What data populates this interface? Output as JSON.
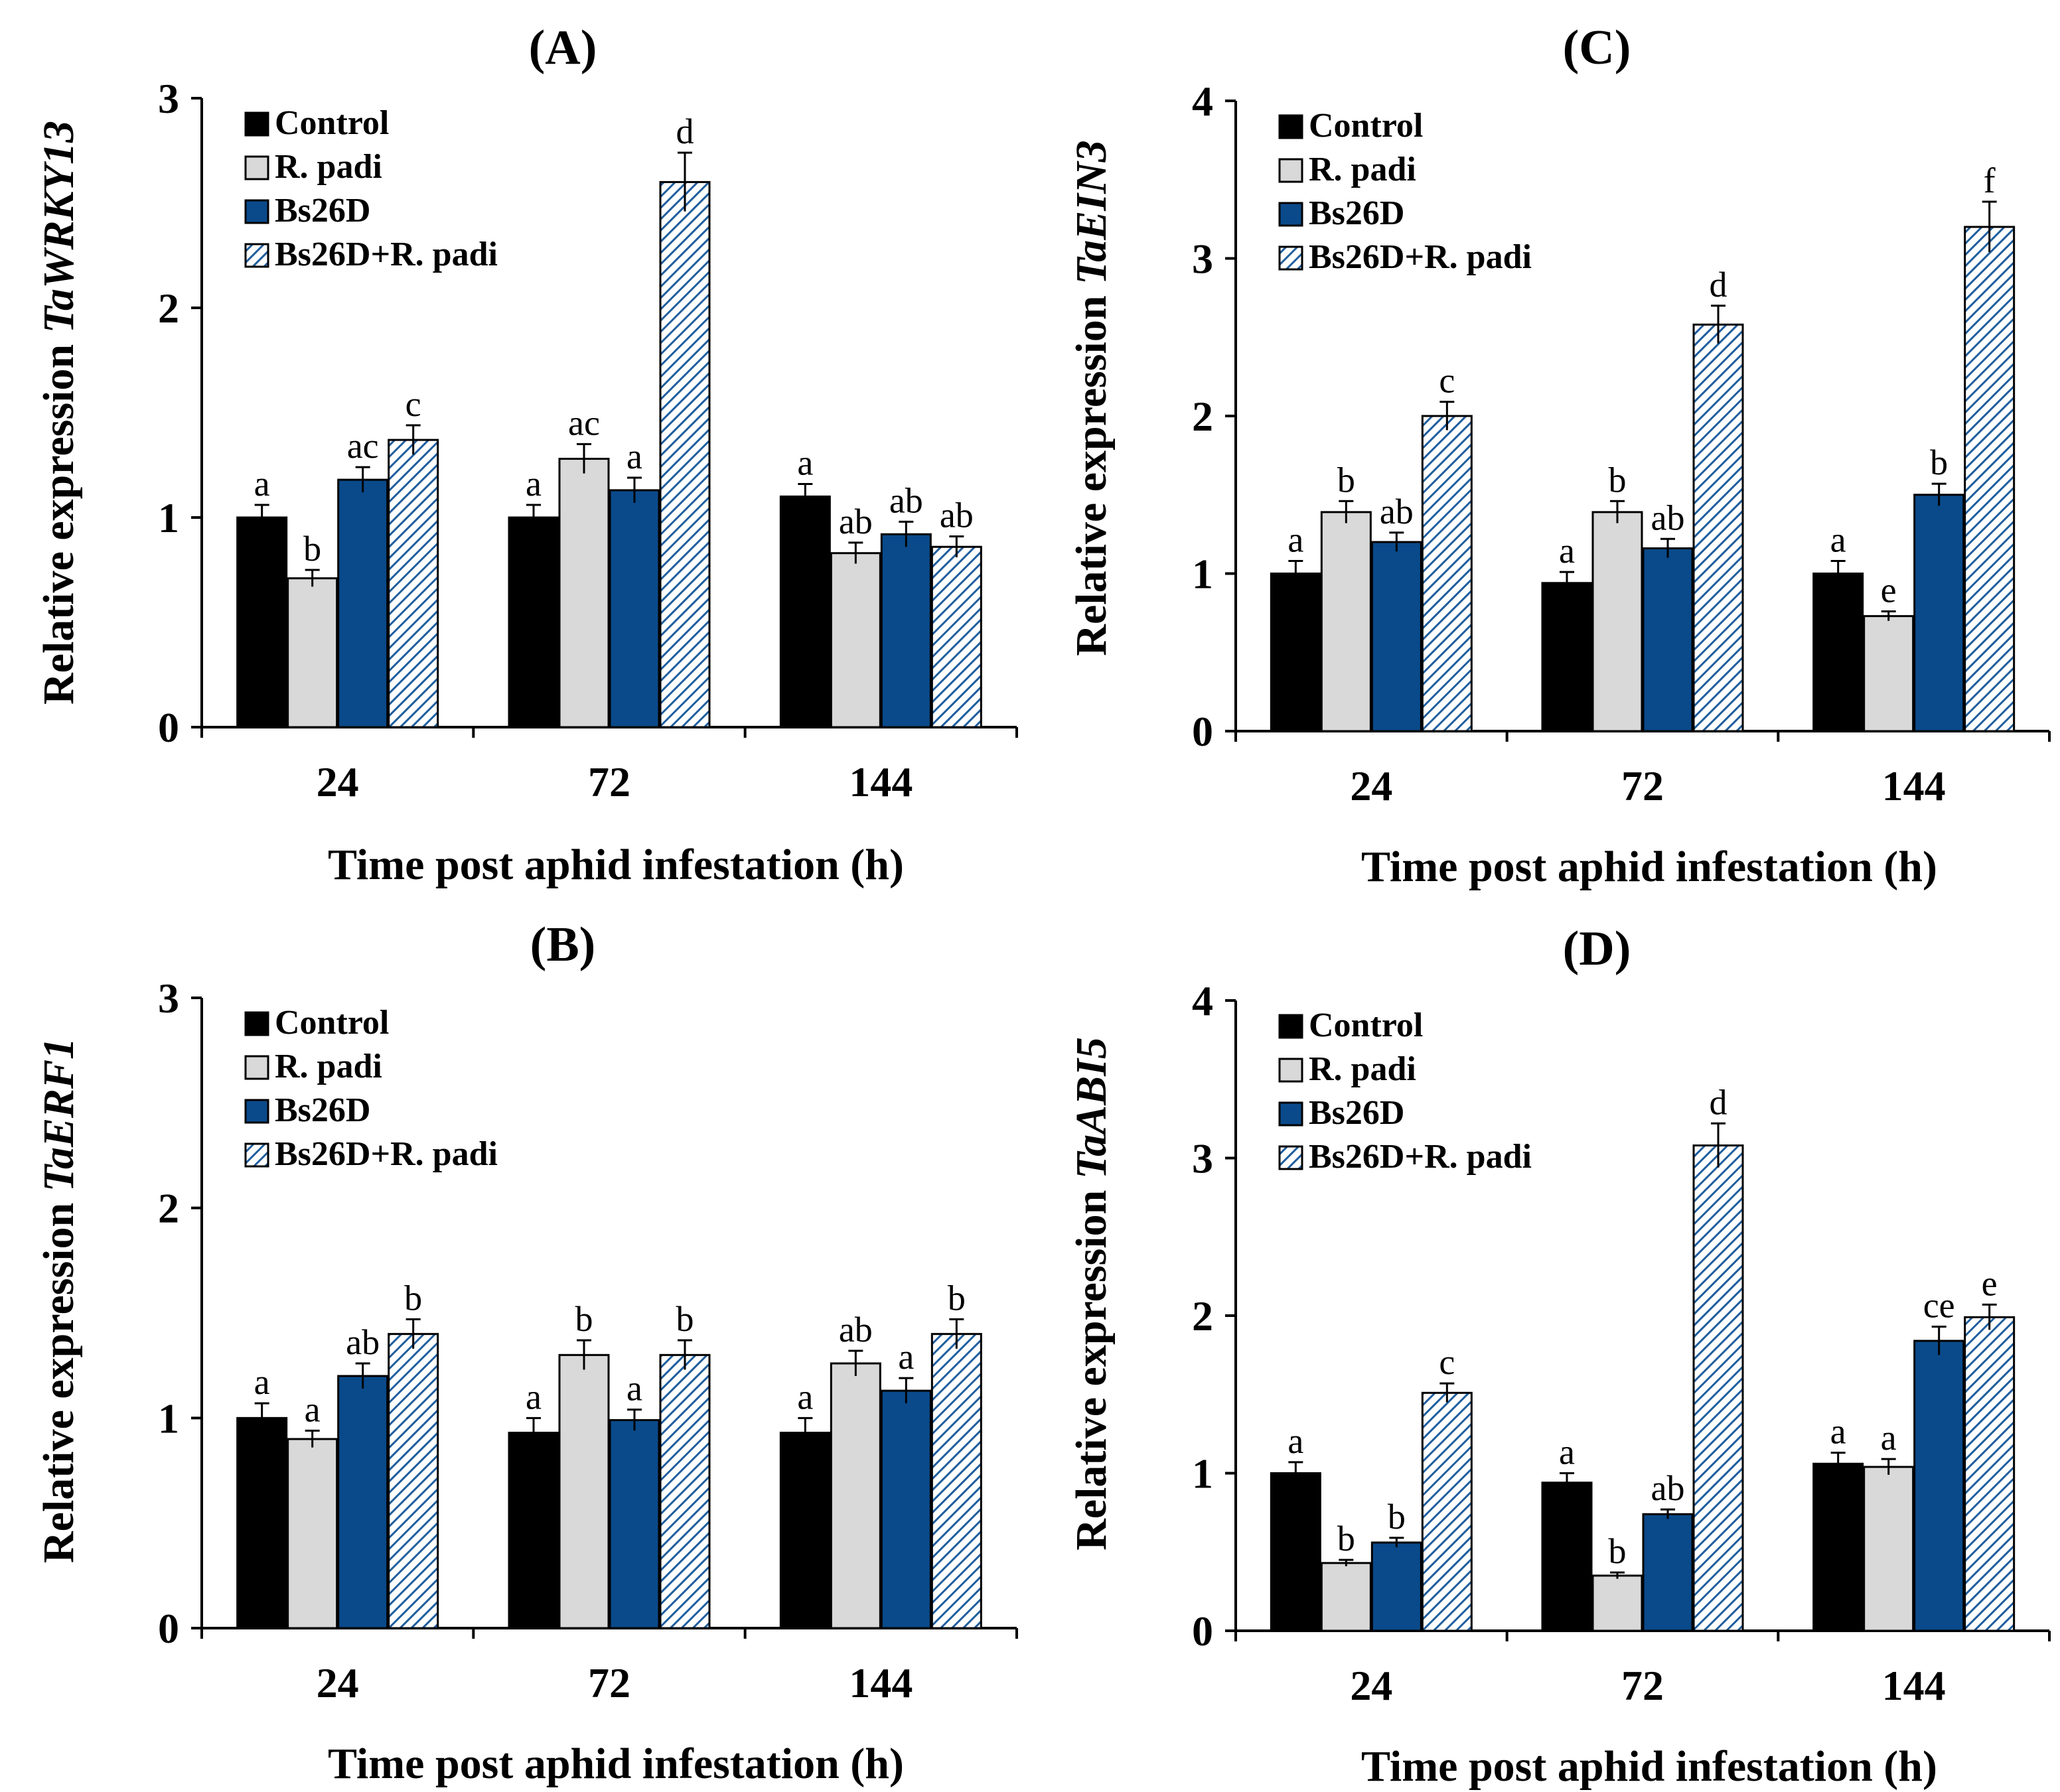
{
  "figure": {
    "colors": {
      "control": "#000000",
      "rpadi": "#d9d9d9",
      "bs26d": "#0a4a8a",
      "hatch_bg": "#ffffff",
      "hatch_line": "#1f5e9e"
    }
  },
  "chart_data": [
    {
      "id": "A",
      "type": "bar",
      "title": "(A)",
      "ylabel_prefix": "Relative expression ",
      "ylabel_gene": "TaWRKY13",
      "xlabel": "Time post aphid infestation (h)",
      "categories": [
        "24",
        "72",
        "144"
      ],
      "ylim": [
        0,
        3
      ],
      "yticks": [
        "0",
        "1",
        "2",
        "3"
      ],
      "series": [
        {
          "name": "Control",
          "values": [
            1.0,
            1.0,
            1.1
          ],
          "errors": [
            0.06,
            0.06,
            0.06
          ],
          "labels": [
            "a",
            "a",
            "a"
          ]
        },
        {
          "name": "R. padi",
          "values": [
            0.71,
            1.28,
            0.83
          ],
          "errors": [
            0.04,
            0.07,
            0.05
          ],
          "labels": [
            "b",
            "ac",
            "ab"
          ]
        },
        {
          "name": "Bs26D",
          "values": [
            1.18,
            1.13,
            0.92
          ],
          "errors": [
            0.06,
            0.06,
            0.06
          ],
          "labels": [
            "ac",
            "a",
            "ab"
          ]
        },
        {
          "name": "Bs26D+R. padi",
          "values": [
            1.37,
            2.6,
            0.86
          ],
          "errors": [
            0.07,
            0.14,
            0.05
          ],
          "labels": [
            "c",
            "d",
            "ab"
          ]
        }
      ]
    },
    {
      "id": "C",
      "type": "bar",
      "title": "(C)",
      "ylabel_prefix": "Relative expression ",
      "ylabel_gene": "TaEIN3",
      "xlabel": "Time post aphid infestation (h)",
      "categories": [
        "24",
        "72",
        "144"
      ],
      "ylim": [
        0,
        4
      ],
      "yticks": [
        "0",
        "1",
        "2",
        "3",
        "4"
      ],
      "series": [
        {
          "name": "Control",
          "values": [
            1.0,
            0.94,
            1.0
          ],
          "errors": [
            0.08,
            0.07,
            0.08
          ],
          "labels": [
            "a",
            "a",
            "a"
          ]
        },
        {
          "name": "R. padi",
          "values": [
            1.39,
            1.39,
            0.73
          ],
          "errors": [
            0.07,
            0.07,
            0.03
          ],
          "labels": [
            "b",
            "b",
            "e"
          ]
        },
        {
          "name": "Bs26D",
          "values": [
            1.2,
            1.16,
            1.5
          ],
          "errors": [
            0.06,
            0.06,
            0.07
          ],
          "labels": [
            "ab",
            "ab",
            "b"
          ]
        },
        {
          "name": "Bs26D+R. padi",
          "values": [
            2.0,
            2.58,
            3.2
          ],
          "errors": [
            0.09,
            0.12,
            0.16
          ],
          "labels": [
            "c",
            "d",
            "f"
          ]
        }
      ]
    },
    {
      "id": "B",
      "type": "bar",
      "title": "(B)",
      "ylabel_prefix": "Relative expression ",
      "ylabel_gene": "TaERF1",
      "xlabel": "Time post aphid infestation (h)",
      "categories": [
        "24",
        "72",
        "144"
      ],
      "ylim": [
        0,
        3
      ],
      "yticks": [
        "0",
        "1",
        "2",
        "3"
      ],
      "series": [
        {
          "name": "Control",
          "values": [
            1.0,
            0.93,
            0.93
          ],
          "errors": [
            0.07,
            0.07,
            0.07
          ],
          "labels": [
            "a",
            "a",
            "a"
          ]
        },
        {
          "name": "R. padi",
          "values": [
            0.9,
            1.3,
            1.26
          ],
          "errors": [
            0.04,
            0.07,
            0.06
          ],
          "labels": [
            "a",
            "b",
            "ab"
          ]
        },
        {
          "name": "Bs26D",
          "values": [
            1.2,
            0.99,
            1.13
          ],
          "errors": [
            0.06,
            0.05,
            0.06
          ],
          "labels": [
            "ab",
            "a",
            "a"
          ]
        },
        {
          "name": "Bs26D+R. padi",
          "values": [
            1.4,
            1.3,
            1.4
          ],
          "errors": [
            0.07,
            0.07,
            0.07
          ],
          "labels": [
            "b",
            "b",
            "b"
          ]
        }
      ]
    },
    {
      "id": "D",
      "type": "bar",
      "title": "(D)",
      "ylabel_prefix": "Relative expression ",
      "ylabel_gene": "TaABI5",
      "xlabel": "Time post aphid infestation (h)",
      "categories": [
        "24",
        "72",
        "144"
      ],
      "ylim": [
        0,
        4
      ],
      "yticks": [
        "0",
        "1",
        "2",
        "3",
        "4"
      ],
      "series": [
        {
          "name": "Control",
          "values": [
            1.0,
            0.94,
            1.06
          ],
          "errors": [
            0.07,
            0.06,
            0.07
          ],
          "labels": [
            "a",
            "a",
            "a"
          ]
        },
        {
          "name": "R. padi",
          "values": [
            0.43,
            0.35,
            1.04
          ],
          "errors": [
            0.02,
            0.02,
            0.05
          ],
          "labels": [
            "b",
            "b",
            "a"
          ]
        },
        {
          "name": "Bs26D",
          "values": [
            0.56,
            0.74,
            1.84
          ],
          "errors": [
            0.03,
            0.03,
            0.09
          ],
          "labels": [
            "b",
            "ab",
            "ce"
          ]
        },
        {
          "name": "Bs26D+R. padi",
          "values": [
            1.51,
            3.08,
            1.99
          ],
          "errors": [
            0.06,
            0.14,
            0.08
          ],
          "labels": [
            "c",
            "d",
            "e"
          ]
        }
      ]
    }
  ]
}
